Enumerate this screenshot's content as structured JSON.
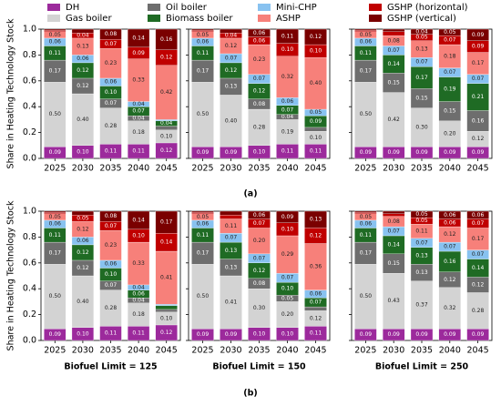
{
  "captions": [
    "(a)",
    "(b)"
  ],
  "chart_data": [
    {
      "type": "bar",
      "stacked": true,
      "ylabel": "Share in Heating Technology Stock",
      "categories": [
        "2025",
        "2030",
        "2035",
        "2040",
        "2045"
      ],
      "ylim": [
        0,
        1
      ],
      "yticks": [
        {
          "value": 0,
          "label": "0.0"
        },
        {
          "value": 0.2,
          "label": "0.2"
        },
        {
          "value": 0.4,
          "label": "0.4"
        },
        {
          "value": 0.6,
          "label": "0.6"
        },
        {
          "value": 0.8,
          "label": "0.8"
        },
        {
          "value": 1,
          "label": "1.0"
        }
      ],
      "series": [
        {
          "name": "DH",
          "color": "#9c2a9c",
          "values": [
            0.09,
            0.1,
            0.11,
            0.11,
            0.12
          ],
          "value_labels": [
            "0.09",
            "0.10",
            "0.11",
            "0.11",
            "0.12"
          ]
        },
        {
          "name": "Gas boiler",
          "color": "#d3d3d3",
          "values": [
            0.5,
            0.4,
            0.28,
            0.18,
            0.1
          ],
          "value_labels": [
            "0.50",
            "0.40",
            "0.28",
            "0.18",
            "0.10"
          ]
        },
        {
          "name": "Oil boiler",
          "color": "#6e6e6e",
          "values": [
            0.17,
            0.12,
            0.07,
            0.04,
            0.03
          ],
          "value_labels": [
            "0.17",
            "0.12",
            "0.07",
            "0.04",
            null
          ]
        },
        {
          "name": "Biomass boiler",
          "color": "#1f6b24",
          "values": [
            0.11,
            0.12,
            0.1,
            0.07,
            0.04
          ],
          "value_labels": [
            "0.11",
            "0.12",
            "0.10",
            "0.07",
            "0.04"
          ]
        },
        {
          "name": "Mini-CHP",
          "color": "#88c2f0",
          "values": [
            0.06,
            0.06,
            0.06,
            0.04,
            0.01
          ],
          "value_labels": [
            "0.06",
            "0.06",
            "0.06",
            "0.04",
            null
          ]
        },
        {
          "name": "ASHP",
          "color": "#f7807a",
          "values": [
            0.05,
            0.13,
            0.23,
            0.33,
            0.42
          ],
          "value_labels": [
            "0.05",
            "0.13",
            "0.23",
            "0.33",
            "0.42"
          ]
        },
        {
          "name": "GSHP (horizontal)",
          "color": "#c00000",
          "values": [
            0.01,
            0.04,
            0.07,
            0.09,
            0.12
          ],
          "value_labels": [
            null,
            "0.04",
            "0.07",
            "0.09",
            "0.12"
          ]
        },
        {
          "name": "GSHP (vertical)",
          "color": "#7a0000",
          "values": [
            0.01,
            0.03,
            0.08,
            0.14,
            0.16
          ],
          "value_labels": [
            null,
            null,
            "0.08",
            "0.14",
            "0.16"
          ]
        }
      ]
    },
    {
      "type": "bar",
      "stacked": true,
      "categories": [
        "2025",
        "2030",
        "2035",
        "2040",
        "2045"
      ],
      "ylim": [
        0,
        1
      ],
      "series": [
        {
          "name": "DH",
          "color": "#9c2a9c",
          "values": [
            0.09,
            0.09,
            0.1,
            0.11,
            0.11
          ],
          "value_labels": [
            "0.09",
            "0.09",
            "0.10",
            "0.11",
            "0.11"
          ]
        },
        {
          "name": "Gas boiler",
          "color": "#d3d3d3",
          "values": [
            0.5,
            0.4,
            0.28,
            0.19,
            0.1
          ],
          "value_labels": [
            "0.50",
            "0.40",
            "0.28",
            "0.19",
            "0.10"
          ]
        },
        {
          "name": "Oil boiler",
          "color": "#6e6e6e",
          "values": [
            0.17,
            0.13,
            0.08,
            0.04,
            0.03
          ],
          "value_labels": [
            "0.17",
            "0.13",
            "0.08",
            "0.04",
            null
          ]
        },
        {
          "name": "Biomass boiler",
          "color": "#1f6b24",
          "values": [
            0.11,
            0.12,
            0.12,
            0.07,
            0.09
          ],
          "value_labels": [
            "0.11",
            "0.12",
            "0.12",
            "0.07",
            "0.09"
          ]
        },
        {
          "name": "Mini-CHP",
          "color": "#88c2f0",
          "values": [
            0.06,
            0.07,
            0.07,
            0.06,
            0.05
          ],
          "value_labels": [
            "0.06",
            "0.07",
            "0.07",
            "0.06",
            "0.05"
          ]
        },
        {
          "name": "ASHP",
          "color": "#f7807a",
          "values": [
            0.05,
            0.12,
            0.23,
            0.32,
            0.4
          ],
          "value_labels": [
            "0.05",
            "0.12",
            "0.23",
            "0.32",
            "0.40"
          ]
        },
        {
          "name": "GSHP (horizontal)",
          "color": "#c00000",
          "values": [
            0.01,
            0.04,
            0.06,
            0.1,
            0.1
          ],
          "value_labels": [
            null,
            "0.04",
            "0.06",
            "0.10",
            "0.10"
          ]
        },
        {
          "name": "GSHP (vertical)",
          "color": "#7a0000",
          "values": [
            0.01,
            0.03,
            0.06,
            0.11,
            0.12
          ],
          "value_labels": [
            null,
            null,
            "0.06",
            "0.11",
            "0.12"
          ]
        }
      ]
    },
    {
      "type": "bar",
      "stacked": true,
      "categories": [
        "2025",
        "2030",
        "2035",
        "2040",
        "2045"
      ],
      "ylim": [
        0,
        1
      ],
      "series": [
        {
          "name": "DH",
          "color": "#9c2a9c",
          "values": [
            0.09,
            0.09,
            0.09,
            0.09,
            0.09
          ],
          "value_labels": [
            "0.09",
            "0.09",
            "0.09",
            "0.09",
            "0.09"
          ]
        },
        {
          "name": "Gas boiler",
          "color": "#d3d3d3",
          "values": [
            0.5,
            0.42,
            0.3,
            0.2,
            0.12
          ],
          "value_labels": [
            "0.50",
            "0.42",
            "0.30",
            "0.20",
            "0.12"
          ]
        },
        {
          "name": "Oil boiler",
          "color": "#6e6e6e",
          "values": [
            0.17,
            0.15,
            0.15,
            0.15,
            0.16
          ],
          "value_labels": [
            "0.17",
            "0.15",
            "0.15",
            "0.15",
            "0.16"
          ]
        },
        {
          "name": "Biomass boiler",
          "color": "#1f6b24",
          "values": [
            0.11,
            0.14,
            0.17,
            0.19,
            0.21
          ],
          "value_labels": [
            "0.11",
            "0.14",
            "0.17",
            "0.19",
            "0.21"
          ]
        },
        {
          "name": "Mini-CHP",
          "color": "#88c2f0",
          "values": [
            0.06,
            0.07,
            0.07,
            0.07,
            0.07
          ],
          "value_labels": [
            "0.06",
            "0.07",
            "0.07",
            "0.07",
            "0.07"
          ]
        },
        {
          "name": "ASHP",
          "color": "#f7807a",
          "values": [
            0.05,
            0.08,
            0.13,
            0.18,
            0.17
          ],
          "value_labels": [
            "0.05",
            "0.08",
            "0.13",
            "0.18",
            "0.17"
          ]
        },
        {
          "name": "GSHP (horizontal)",
          "color": "#c00000",
          "values": [
            0.01,
            0.03,
            0.05,
            0.07,
            0.09
          ],
          "value_labels": [
            null,
            null,
            "0.05",
            "0.07",
            "0.09"
          ]
        },
        {
          "name": "GSHP (vertical)",
          "color": "#7a0000",
          "values": [
            0.01,
            0.02,
            0.04,
            0.05,
            0.09
          ],
          "value_labels": [
            null,
            null,
            "0.04",
            "0.05",
            "0.09"
          ]
        }
      ]
    },
    {
      "type": "bar",
      "stacked": true,
      "ylabel": "Share in Heating Technology Stock",
      "xlabel": "Biofuel Limit = 125",
      "categories": [
        "2025",
        "2030",
        "2035",
        "2040",
        "2045"
      ],
      "ylim": [
        0,
        1
      ],
      "yticks": [
        {
          "value": 0,
          "label": "0.0"
        },
        {
          "value": 0.2,
          "label": "0.2"
        },
        {
          "value": 0.4,
          "label": "0.4"
        },
        {
          "value": 0.6,
          "label": "0.6"
        },
        {
          "value": 0.8,
          "label": "0.8"
        },
        {
          "value": 1,
          "label": "1.0"
        }
      ],
      "series": [
        {
          "name": "DH",
          "color": "#9c2a9c",
          "values": [
            0.09,
            0.1,
            0.11,
            0.11,
            0.12
          ],
          "value_labels": [
            "0.09",
            "0.10",
            "0.11",
            "0.11",
            "0.12"
          ]
        },
        {
          "name": "Gas boiler",
          "color": "#d3d3d3",
          "values": [
            0.5,
            0.4,
            0.28,
            0.18,
            0.1
          ],
          "value_labels": [
            "0.50",
            "0.40",
            "0.28",
            "0.18",
            "0.10"
          ]
        },
        {
          "name": "Oil boiler",
          "color": "#6e6e6e",
          "values": [
            0.17,
            0.12,
            0.07,
            0.04,
            0.02
          ],
          "value_labels": [
            "0.17",
            "0.12",
            "0.07",
            "0.04",
            null
          ]
        },
        {
          "name": "Biomass boiler",
          "color": "#1f6b24",
          "values": [
            0.11,
            0.12,
            0.1,
            0.06,
            0.03
          ],
          "value_labels": [
            "0.11",
            "0.12",
            "0.10",
            "0.06",
            null
          ]
        },
        {
          "name": "Mini-CHP",
          "color": "#88c2f0",
          "values": [
            0.06,
            0.06,
            0.06,
            0.04,
            0.01
          ],
          "value_labels": [
            "0.06",
            "0.06",
            "0.06",
            "0.04",
            null
          ]
        },
        {
          "name": "ASHP",
          "color": "#f7807a",
          "values": [
            0.05,
            0.12,
            0.23,
            0.33,
            0.41
          ],
          "value_labels": [
            "0.05",
            "0.12",
            "0.23",
            "0.33",
            "0.41"
          ]
        },
        {
          "name": "GSHP (horizontal)",
          "color": "#c00000",
          "values": [
            0.01,
            0.05,
            0.07,
            0.1,
            0.14
          ],
          "value_labels": [
            null,
            "0.05",
            "0.07",
            "0.10",
            "0.14"
          ]
        },
        {
          "name": "GSHP (vertical)",
          "color": "#7a0000",
          "values": [
            0.01,
            0.03,
            0.08,
            0.14,
            0.17
          ],
          "value_labels": [
            null,
            null,
            "0.08",
            "0.14",
            "0.17"
          ]
        }
      ]
    },
    {
      "type": "bar",
      "stacked": true,
      "xlabel": "Biofuel Limit = 150",
      "categories": [
        "2025",
        "2030",
        "2035",
        "2040",
        "2045"
      ],
      "ylim": [
        0,
        1
      ],
      "series": [
        {
          "name": "DH",
          "color": "#9c2a9c",
          "values": [
            0.09,
            0.09,
            0.1,
            0.1,
            0.11
          ],
          "value_labels": [
            "0.09",
            "0.09",
            "0.10",
            "0.10",
            "0.11"
          ]
        },
        {
          "name": "Gas boiler",
          "color": "#d3d3d3",
          "values": [
            0.5,
            0.41,
            0.3,
            0.2,
            0.12
          ],
          "value_labels": [
            "0.50",
            "0.41",
            "0.30",
            "0.20",
            "0.12"
          ]
        },
        {
          "name": "Oil boiler",
          "color": "#6e6e6e",
          "values": [
            0.17,
            0.13,
            0.08,
            0.05,
            0.03
          ],
          "value_labels": [
            "0.17",
            "0.13",
            "0.08",
            "0.05",
            null
          ]
        },
        {
          "name": "Biomass boiler",
          "color": "#1f6b24",
          "values": [
            0.11,
            0.13,
            0.12,
            0.1,
            0.07
          ],
          "value_labels": [
            "0.11",
            "0.13",
            "0.12",
            "0.10",
            "0.07"
          ]
        },
        {
          "name": "Mini-CHP",
          "color": "#88c2f0",
          "values": [
            0.06,
            0.07,
            0.07,
            0.07,
            0.06
          ],
          "value_labels": [
            "0.06",
            "0.07",
            "0.07",
            "0.07",
            "0.06"
          ]
        },
        {
          "name": "ASHP",
          "color": "#f7807a",
          "values": [
            0.05,
            0.11,
            0.2,
            0.29,
            0.36
          ],
          "value_labels": [
            "0.05",
            "0.11",
            "0.20",
            "0.29",
            "0.36"
          ]
        },
        {
          "name": "GSHP (horizontal)",
          "color": "#c00000",
          "values": [
            0.01,
            0.03,
            0.07,
            0.1,
            0.12
          ],
          "value_labels": [
            null,
            null,
            "0.07",
            "0.10",
            "0.12"
          ]
        },
        {
          "name": "GSHP (vertical)",
          "color": "#7a0000",
          "values": [
            0.01,
            0.03,
            0.06,
            0.09,
            0.13
          ],
          "value_labels": [
            null,
            null,
            "0.06",
            "0.09",
            "0.13"
          ]
        }
      ]
    },
    {
      "type": "bar",
      "stacked": true,
      "xlabel": "Biofuel Limit = 250",
      "categories": [
        "2025",
        "2030",
        "2035",
        "2040",
        "2045"
      ],
      "ylim": [
        0,
        1
      ],
      "series": [
        {
          "name": "DH",
          "color": "#9c2a9c",
          "values": [
            0.09,
            0.09,
            0.09,
            0.09,
            0.09
          ],
          "value_labels": [
            "0.09",
            "0.09",
            "0.09",
            "0.09",
            "0.09"
          ]
        },
        {
          "name": "Gas boiler",
          "color": "#d3d3d3",
          "values": [
            0.5,
            0.43,
            0.37,
            0.32,
            0.28
          ],
          "value_labels": [
            "0.50",
            "0.43",
            "0.37",
            "0.32",
            "0.28"
          ]
        },
        {
          "name": "Oil boiler",
          "color": "#6e6e6e",
          "values": [
            0.17,
            0.15,
            0.13,
            0.12,
            0.12
          ],
          "value_labels": [
            "0.17",
            "0.15",
            "0.13",
            "0.12",
            "0.12"
          ]
        },
        {
          "name": "Biomass boiler",
          "color": "#1f6b24",
          "values": [
            0.11,
            0.14,
            0.13,
            0.16,
            0.14
          ],
          "value_labels": [
            "0.11",
            "0.14",
            "0.13",
            "0.16",
            "0.14"
          ]
        },
        {
          "name": "Mini-CHP",
          "color": "#88c2f0",
          "values": [
            0.06,
            0.07,
            0.07,
            0.07,
            0.07
          ],
          "value_labels": [
            "0.06",
            "0.07",
            "0.07",
            "0.07",
            "0.07"
          ]
        },
        {
          "name": "ASHP",
          "color": "#f7807a",
          "values": [
            0.05,
            0.08,
            0.11,
            0.12,
            0.17
          ],
          "value_labels": [
            "0.05",
            "0.08",
            "0.11",
            "0.12",
            "0.17"
          ]
        },
        {
          "name": "GSHP (horizontal)",
          "color": "#c00000",
          "values": [
            0.01,
            0.02,
            0.05,
            0.06,
            0.07
          ],
          "value_labels": [
            null,
            null,
            "0.05",
            "0.06",
            "0.07"
          ]
        },
        {
          "name": "GSHP (vertical)",
          "color": "#7a0000",
          "values": [
            0.01,
            0.02,
            0.05,
            0.06,
            0.06
          ],
          "value_labels": [
            null,
            null,
            "0.05",
            "0.06",
            "0.06"
          ]
        }
      ]
    }
  ]
}
